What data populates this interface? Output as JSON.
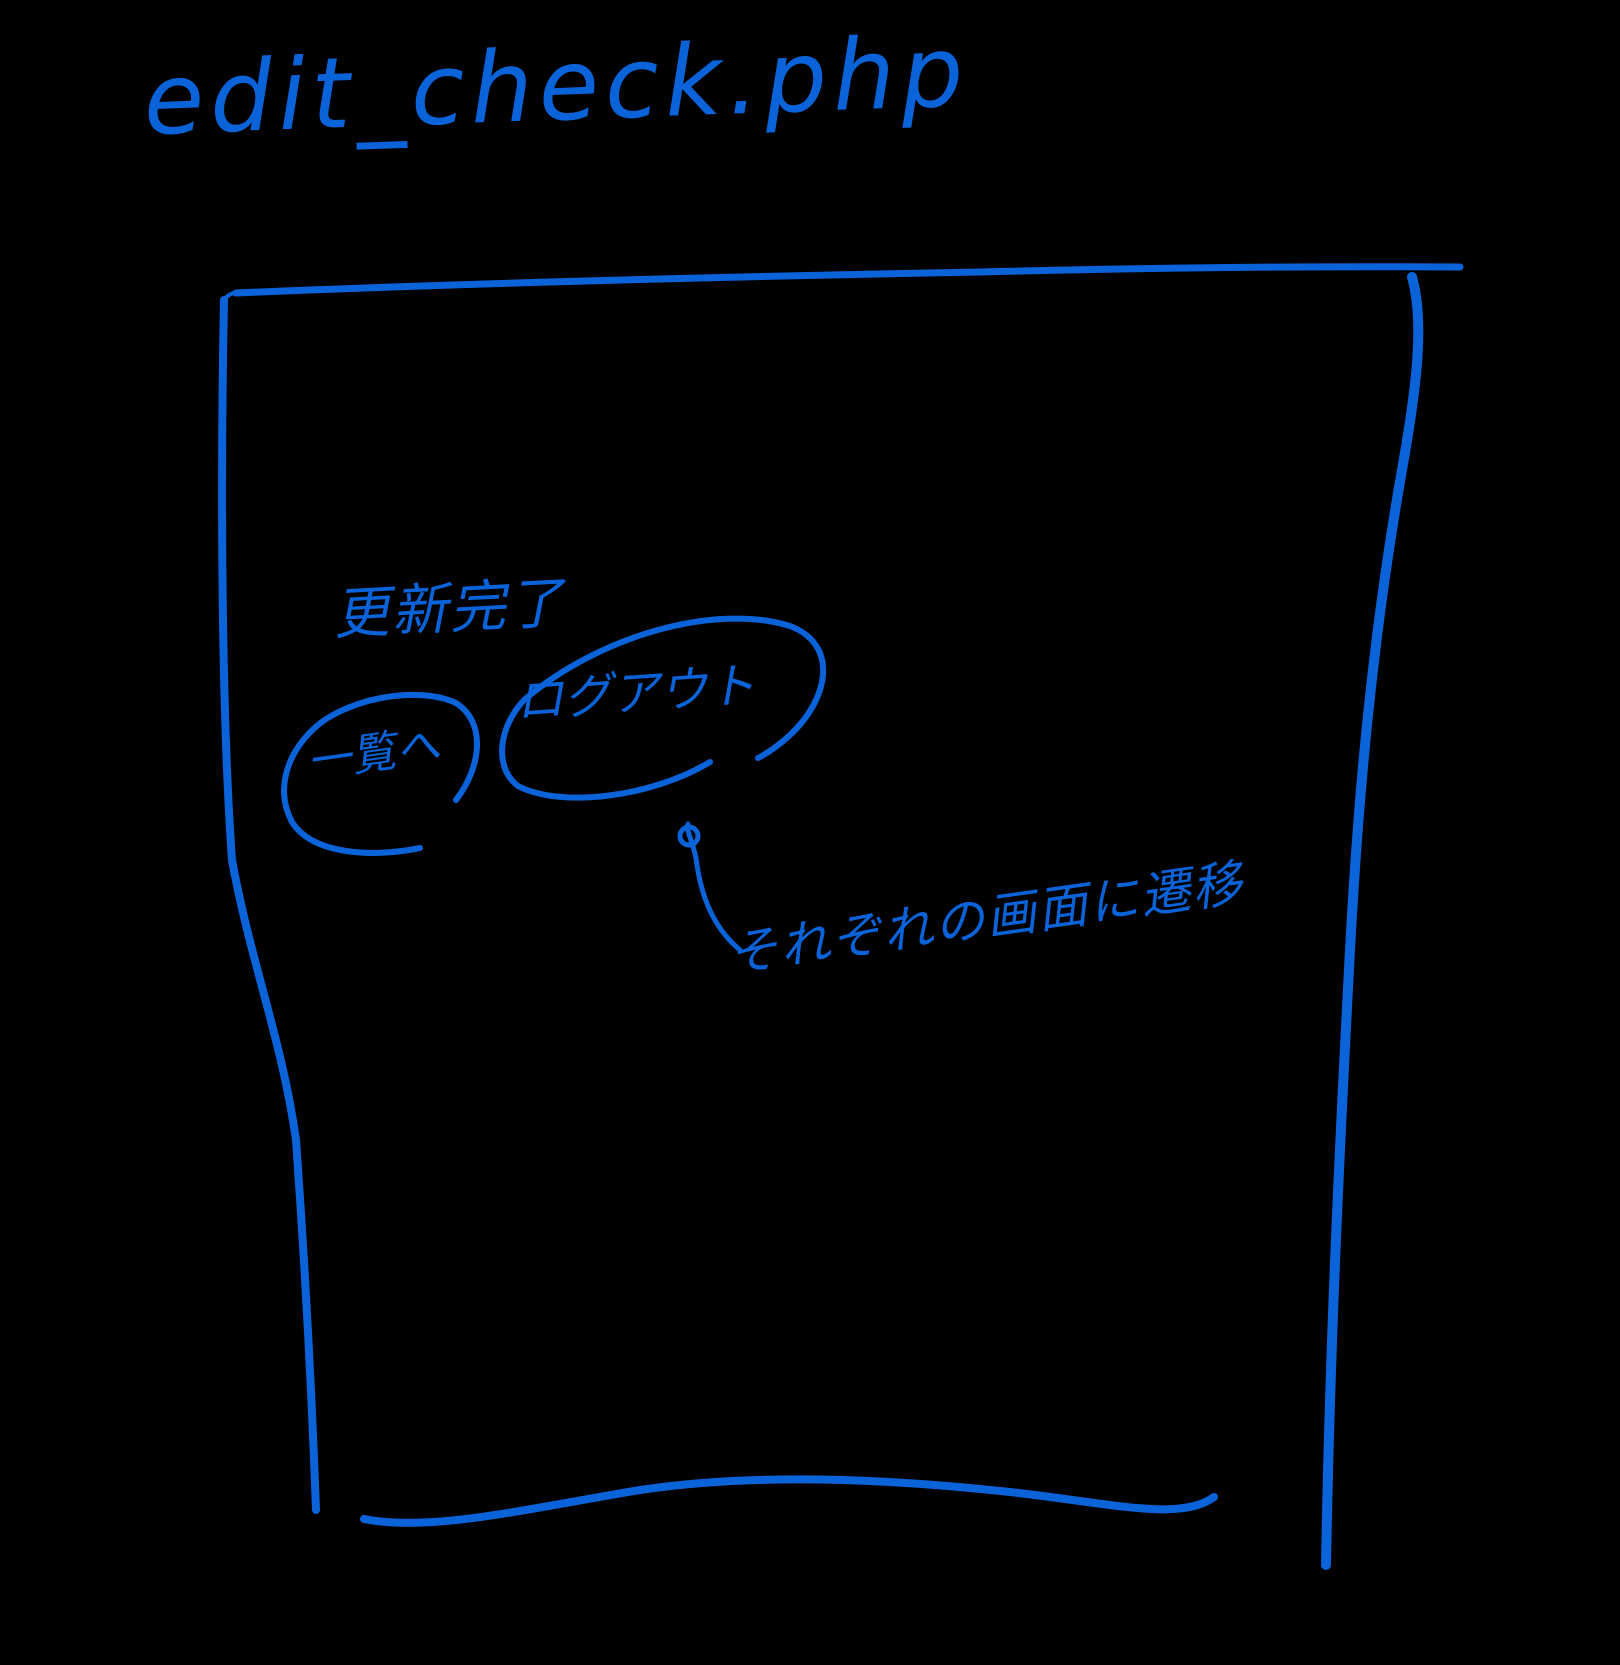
{
  "title": "edit_check.php",
  "sketch": {
    "status_text": "更新完了",
    "list_button_label": "一覧へ",
    "logout_button_label": "ログアウト",
    "annotation": "それぞれの画面に遷移"
  },
  "colors": {
    "background": "#000000",
    "ink": "#0a63d8"
  }
}
